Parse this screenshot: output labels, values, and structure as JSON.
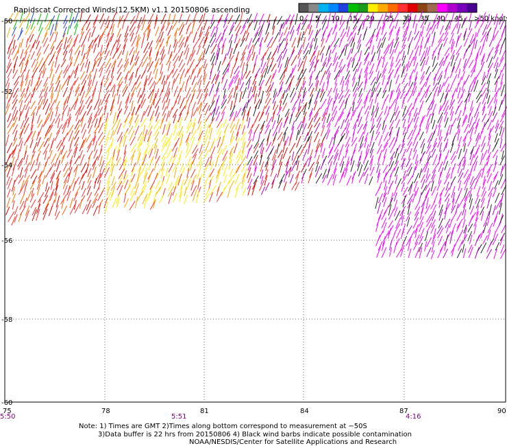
{
  "title": "Rapidscat Corrected Winds(12.5KM) v1.1 20150806 ascending",
  "legend": {
    "colors": [
      "#555555",
      "#888888",
      "#00b4f0",
      "#0088ff",
      "#2040e0",
      "#00c000",
      "#1a9a1a",
      "#ffee00",
      "#ffaa00",
      "#ff6a00",
      "#ff3030",
      "#e00000",
      "#8b4513",
      "#a06a50",
      "#ff00ff",
      "#b000d0",
      "#7a00c0",
      "#4a0090"
    ],
    "labels": [
      "0",
      "5",
      "10",
      "15",
      "20",
      "25",
      "30",
      "35",
      "40",
      "45",
      ">50 knots"
    ]
  },
  "axes": {
    "x_ticks": [
      "75",
      "78",
      "81",
      "84",
      "87",
      "90"
    ],
    "y_ticks": [
      "-50",
      "-52",
      "-54",
      "-56",
      "-58",
      "-60"
    ],
    "times": [
      "5:50",
      "5:51",
      "4:16"
    ]
  },
  "notes": [
    "Note: 1) Times are GMT 2)Times along bottom correspond to measurement at −50S",
    "3)Data buffer is 22 hrs from 20150806 4) Black wind barbs indicate possible contamination",
    "NOAA/NESDIS/Center for Satellite Applications and Research"
  ]
}
